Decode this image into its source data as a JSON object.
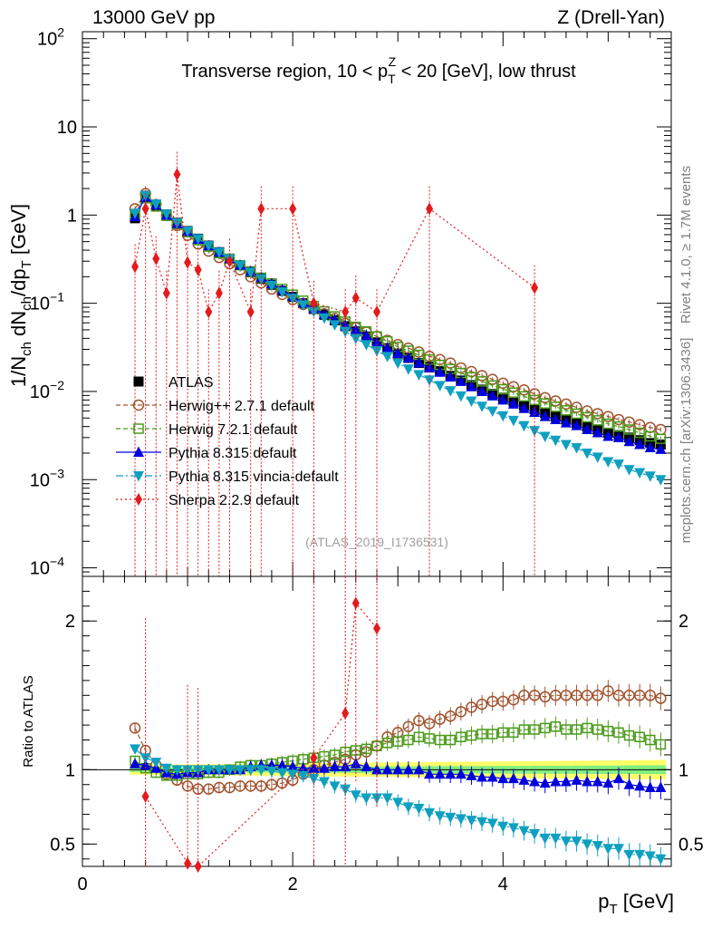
{
  "header": {
    "left": "13000 GeV pp",
    "right": "Z (Drell-Yan)"
  },
  "side_labels": {
    "rivet": "Rivet 4.1.0, ≥ 1.7M events",
    "mcplots": "mcplots.cern.ch [arXiv:1306.3436]"
  },
  "chart_data": [
    {
      "type": "scatter",
      "panel": "main",
      "title": {
        "prefix": "Transverse region, 10 < p",
        "sub": "T",
        "sup": "Z",
        "suffix": " < 20 [GeV], low thrust"
      },
      "ylabel": {
        "parts": [
          {
            "t": "1/N",
            "s": "n"
          },
          {
            "t": "ch",
            "s": "sub"
          },
          {
            "t": " dN",
            "s": "n"
          },
          {
            "t": "ch",
            "s": "sub"
          },
          {
            "t": "/dp",
            "s": "n"
          },
          {
            "t": "T",
            "s": "sub"
          },
          {
            "t": " [GeV]",
            "s": "n"
          }
        ]
      },
      "yscale": "log",
      "ylim": [
        8e-05,
        120
      ],
      "xlim": [
        0,
        5.6
      ],
      "ytick_labels": [
        {
          "v": 0.0001,
          "base": "10",
          "exp": "−4"
        },
        {
          "v": 0.001,
          "base": "10",
          "exp": "−3"
        },
        {
          "v": 0.01,
          "base": "10",
          "exp": "−2"
        },
        {
          "v": 0.1,
          "base": "10",
          "exp": "−1"
        },
        {
          "v": 1,
          "base": "1",
          "exp": ""
        },
        {
          "v": 10,
          "base": "10",
          "exp": ""
        },
        {
          "v": 100,
          "base": "10",
          "exp": "2"
        }
      ],
      "watermark": "(ATLAS_2019_I1736531)",
      "x": [
        0.5,
        0.6,
        0.7,
        0.8,
        0.9,
        1.0,
        1.1,
        1.2,
        1.3,
        1.4,
        1.5,
        1.6,
        1.7,
        1.8,
        1.9,
        2.0,
        2.1,
        2.2,
        2.3,
        2.4,
        2.5,
        2.6,
        2.7,
        2.8,
        2.9,
        3.0,
        3.1,
        3.2,
        3.3,
        3.4,
        3.5,
        3.6,
        3.7,
        3.8,
        3.9,
        4.0,
        4.1,
        4.2,
        4.3,
        4.4,
        4.5,
        4.6,
        4.7,
        4.8,
        4.9,
        5.0,
        5.1,
        5.2,
        5.3,
        5.4,
        5.5
      ],
      "series": [
        {
          "name": "ATLAS",
          "values": [
            0.92,
            1.55,
            1.28,
            1.02,
            0.82,
            0.66,
            0.54,
            0.45,
            0.38,
            0.32,
            0.27,
            0.225,
            0.19,
            0.162,
            0.138,
            0.118,
            0.1,
            0.086,
            0.074,
            0.064,
            0.055,
            0.048,
            0.042,
            0.036,
            0.031,
            0.027,
            0.024,
            0.021,
            0.019,
            0.017,
            0.015,
            0.0133,
            0.0118,
            0.0105,
            0.0094,
            0.0085,
            0.0077,
            0.0069,
            0.0063,
            0.0057,
            0.0052,
            0.0048,
            0.0044,
            0.004,
            0.0037,
            0.0034,
            0.0032,
            0.003,
            0.0028,
            0.0026,
            0.0025
          ]
        },
        {
          "name": "Herwig++ 2.7.1 default",
          "values": [
            1.18,
            1.75,
            1.32,
            0.99,
            0.76,
            0.59,
            0.47,
            0.39,
            0.33,
            0.28,
            0.24,
            0.2,
            0.17,
            0.145,
            0.126,
            0.11,
            0.097,
            0.086,
            0.076,
            0.067,
            0.059,
            0.053,
            0.047,
            0.042,
            0.038,
            0.034,
            0.031,
            0.028,
            0.025,
            0.023,
            0.021,
            0.0185,
            0.0168,
            0.0151,
            0.0137,
            0.0124,
            0.0113,
            0.0104,
            0.0094,
            0.0085,
            0.0078,
            0.0072,
            0.0066,
            0.006,
            0.0056,
            0.0052,
            0.0048,
            0.0045,
            0.0042,
            0.0039,
            0.0037
          ]
        },
        {
          "name": "Herwig 7.2.1 default",
          "values": [
            0.98,
            1.56,
            1.25,
            0.98,
            0.79,
            0.64,
            0.52,
            0.44,
            0.37,
            0.32,
            0.27,
            0.23,
            0.195,
            0.168,
            0.145,
            0.125,
            0.107,
            0.093,
            0.081,
            0.071,
            0.062,
            0.054,
            0.048,
            0.042,
            0.037,
            0.032,
            0.029,
            0.026,
            0.023,
            0.02,
            0.018,
            0.0162,
            0.0145,
            0.013,
            0.0117,
            0.0106,
            0.0097,
            0.0088,
            0.008,
            0.0073,
            0.0067,
            0.0061,
            0.0056,
            0.0051,
            0.0047,
            0.0043,
            0.004,
            0.0037,
            0.0034,
            0.0031,
            0.0029
          ]
        },
        {
          "name": "Pythia 8.315 default",
          "values": [
            0.96,
            1.6,
            1.3,
            1.0,
            0.8,
            0.65,
            0.53,
            0.45,
            0.38,
            0.32,
            0.27,
            0.23,
            0.195,
            0.167,
            0.142,
            0.12,
            0.101,
            0.087,
            0.075,
            0.065,
            0.056,
            0.05,
            0.043,
            0.036,
            0.031,
            0.027,
            0.024,
            0.021,
            0.0185,
            0.0165,
            0.0146,
            0.013,
            0.0113,
            0.01,
            0.0089,
            0.008,
            0.0072,
            0.0064,
            0.0058,
            0.0052,
            0.0048,
            0.0044,
            0.0041,
            0.0037,
            0.0034,
            0.0031,
            0.003,
            0.0027,
            0.0025,
            0.0023,
            0.0022
          ]
        },
        {
          "name": "Pythia 8.315 vincia-default",
          "values": [
            1.05,
            1.68,
            1.34,
            1.03,
            0.82,
            0.66,
            0.54,
            0.45,
            0.38,
            0.32,
            0.27,
            0.225,
            0.19,
            0.16,
            0.135,
            0.114,
            0.096,
            0.081,
            0.068,
            0.057,
            0.048,
            0.04,
            0.034,
            0.029,
            0.025,
            0.021,
            0.018,
            0.0155,
            0.0135,
            0.0117,
            0.0102,
            0.0089,
            0.0078,
            0.0068,
            0.006,
            0.0053,
            0.0047,
            0.0041,
            0.0036,
            0.0031,
            0.0028,
            0.0025,
            0.0023,
            0.002,
            0.0018,
            0.0016,
            0.0015,
            0.0013,
            0.0012,
            0.0011,
            0.001
          ]
        },
        {
          "name": "Sherpa 2.2.9 default",
          "x_pts": [
            0.5,
            0.6,
            0.7,
            0.8,
            0.9,
            1.0,
            1.1,
            1.2,
            1.3,
            1.4,
            1.6,
            1.7,
            2.0,
            2.2,
            2.5,
            2.6,
            2.8,
            3.3,
            4.3
          ],
          "values": [
            0.26,
            1.18,
            0.32,
            0.13,
            2.9,
            0.29,
            0.24,
            0.08,
            0.13,
            0.3,
            0.08,
            1.18,
            1.18,
            0.1,
            0.08,
            0.115,
            0.08,
            1.18,
            0.15
          ]
        }
      ]
    },
    {
      "type": "scatter",
      "panel": "ratio",
      "ylabel": "Ratio to ATLAS",
      "xlabel": {
        "main": "p",
        "sub": "T",
        "unit": " [GeV]"
      },
      "ylim": [
        0.35,
        2.3
      ],
      "xlim": [
        0,
        5.6
      ],
      "ytick_labels": [
        "0.5",
        "1",
        "2"
      ],
      "xtick_labels": [
        "0",
        "2",
        "4"
      ],
      "series": [
        {
          "name": "Herwig++ 2.7.1 default",
          "values": [
            1.28,
            1.13,
            1.03,
            0.97,
            0.93,
            0.89,
            0.87,
            0.87,
            0.88,
            0.88,
            0.89,
            0.89,
            0.89,
            0.9,
            0.91,
            0.93,
            0.97,
            1.0,
            1.03,
            1.05,
            1.07,
            1.1,
            1.12,
            1.16,
            1.22,
            1.25,
            1.29,
            1.33,
            1.31,
            1.34,
            1.36,
            1.39,
            1.42,
            1.44,
            1.46,
            1.46,
            1.47,
            1.5,
            1.5,
            1.49,
            1.5,
            1.5,
            1.5,
            1.5,
            1.5,
            1.53,
            1.5,
            1.5,
            1.5,
            1.5,
            1.48
          ]
        },
        {
          "name": "Herwig 7.2.1 default",
          "values": [
            1.06,
            1.01,
            0.98,
            0.96,
            0.96,
            0.97,
            0.97,
            0.98,
            0.98,
            1.0,
            1.02,
            1.03,
            1.03,
            1.04,
            1.05,
            1.06,
            1.07,
            1.08,
            1.09,
            1.1,
            1.12,
            1.13,
            1.14,
            1.16,
            1.18,
            1.19,
            1.2,
            1.22,
            1.21,
            1.2,
            1.2,
            1.22,
            1.23,
            1.24,
            1.24,
            1.25,
            1.25,
            1.27,
            1.27,
            1.28,
            1.29,
            1.27,
            1.27,
            1.28,
            1.27,
            1.26,
            1.25,
            1.23,
            1.22,
            1.2,
            1.17
          ]
        },
        {
          "name": "Pythia 8.315 default",
          "values": [
            1.04,
            1.03,
            1.01,
            0.98,
            0.97,
            0.98,
            0.98,
            1.0,
            1.0,
            1.0,
            1.0,
            1.02,
            1.03,
            1.03,
            1.03,
            1.02,
            1.01,
            1.01,
            1.01,
            1.02,
            1.02,
            1.04,
            1.02,
            1.0,
            1.0,
            1.0,
            1.0,
            1.0,
            0.97,
            0.97,
            0.97,
            0.97,
            0.96,
            0.95,
            0.95,
            0.94,
            0.94,
            0.93,
            0.92,
            0.91,
            0.92,
            0.92,
            0.93,
            0.92,
            0.92,
            0.91,
            0.94,
            0.9,
            0.89,
            0.88,
            0.88
          ]
        },
        {
          "name": "Pythia 8.315 vincia-default",
          "values": [
            1.14,
            1.08,
            1.05,
            1.01,
            1.0,
            1.0,
            1.0,
            1.0,
            1.0,
            1.0,
            1.0,
            1.0,
            1.0,
            0.99,
            0.98,
            0.97,
            0.96,
            0.94,
            0.92,
            0.89,
            0.87,
            0.83,
            0.81,
            0.81,
            0.81,
            0.78,
            0.75,
            0.74,
            0.71,
            0.69,
            0.68,
            0.67,
            0.66,
            0.65,
            0.64,
            0.62,
            0.61,
            0.59,
            0.57,
            0.54,
            0.54,
            0.52,
            0.52,
            0.5,
            0.49,
            0.47,
            0.47,
            0.43,
            0.43,
            0.42,
            0.4
          ]
        },
        {
          "name": "Sherpa 2.2.9 default",
          "x_pts": [
            0.6,
            1.0,
            1.1,
            2.2,
            2.5,
            2.6,
            2.8
          ],
          "values": [
            0.82,
            0.37,
            0.35,
            1.08,
            1.38,
            2.12,
            1.95
          ]
        }
      ]
    }
  ],
  "legend": {
    "entries": [
      {
        "label": "ATLAS",
        "color": "#000000",
        "marker": "filled-square"
      },
      {
        "label": "Herwig++ 2.7.1 default",
        "color": "#a0522d",
        "marker": "open-circle"
      },
      {
        "label": "Herwig 7.2.1 default",
        "color": "#4a9a1a",
        "marker": "open-square"
      },
      {
        "label": "Pythia 8.315 default",
        "color": "#0000dd",
        "marker": "filled-triangle-up"
      },
      {
        "label": "Pythia 8.315 vincia-default",
        "color": "#0fa0c0",
        "marker": "filled-triangle-down"
      },
      {
        "label": "Sherpa 2.2.9 default",
        "color": "#e41a1c",
        "marker": "filled-diamond"
      }
    ]
  }
}
